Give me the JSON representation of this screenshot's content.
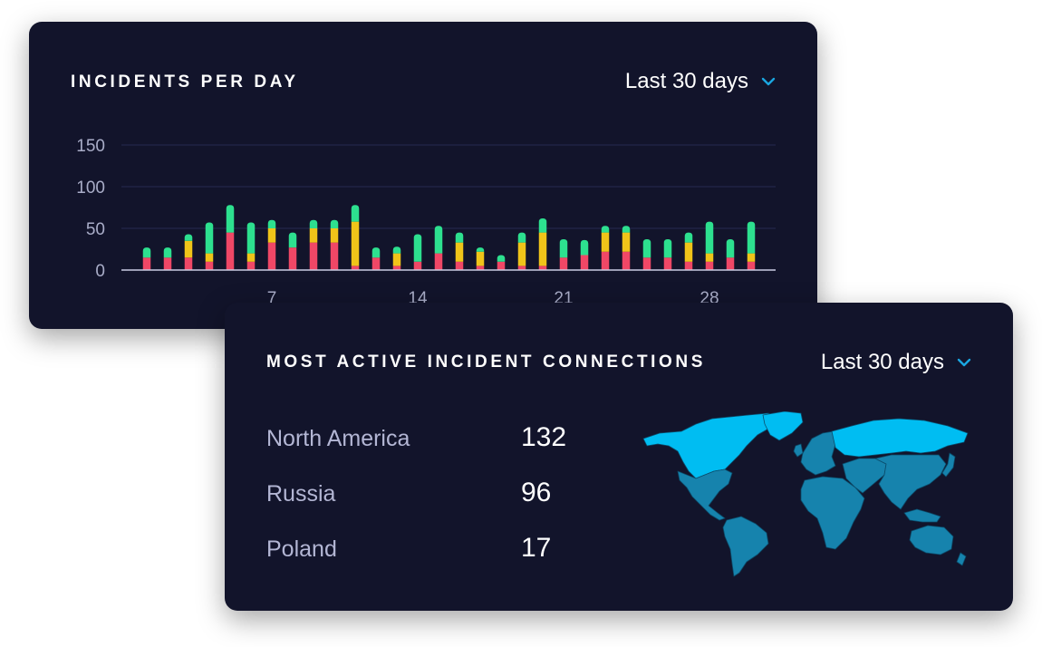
{
  "incidents_card": {
    "title": "INCIDENTS PER DAY",
    "range_label": "Last 30 days"
  },
  "connections_card": {
    "title": "MOST ACTIVE INCIDENT CONNECTIONS",
    "range_label": "Last 30 days",
    "regions": [
      {
        "name": "North America",
        "count": "132"
      },
      {
        "name": "Russia",
        "count": "96"
      },
      {
        "name": "Poland",
        "count": "17"
      }
    ],
    "map_colors": {
      "highlight": "#00bdf2",
      "base": "#1683ad",
      "border": "#0b4c6b"
    },
    "map_highlighted_regions": [
      "North America",
      "Russia"
    ]
  },
  "colors": {
    "card_bg": "#12142b",
    "accent": "#1aa6e0",
    "green": "#2de08f",
    "yellow": "#f0c419",
    "red": "#f04766",
    "axis": "#a9adc8",
    "grid": "#23264a"
  },
  "chart_data": {
    "type": "bar",
    "stacked": true,
    "ylim": [
      0,
      150
    ],
    "y_ticks": [
      "0",
      "50",
      "100",
      "150"
    ],
    "x_ticks": [
      "7",
      "14",
      "21",
      "28"
    ],
    "x": [
      1,
      2,
      3,
      4,
      5,
      6,
      7,
      8,
      9,
      10,
      11,
      12,
      13,
      14,
      15,
      16,
      17,
      18,
      19,
      20,
      21,
      22,
      23,
      24,
      25,
      26,
      27,
      28,
      29,
      30
    ],
    "series": [
      {
        "color": "#f04766",
        "values": [
          15,
          15,
          15,
          10,
          45,
          10,
          33,
          27,
          33,
          33,
          5,
          15,
          5,
          10,
          20,
          10,
          5,
          10,
          5,
          5,
          15,
          18,
          22,
          22,
          15,
          15,
          10,
          10,
          15,
          10
        ]
      },
      {
        "color": "#f0c419",
        "values": [
          0,
          0,
          20,
          10,
          0,
          10,
          17,
          0,
          17,
          17,
          53,
          0,
          15,
          0,
          0,
          23,
          17,
          0,
          28,
          40,
          0,
          0,
          23,
          23,
          0,
          0,
          23,
          10,
          0,
          10
        ]
      },
      {
        "color": "#2de08f",
        "values": [
          12,
          12,
          8,
          37,
          33,
          37,
          10,
          18,
          10,
          10,
          20,
          12,
          8,
          33,
          33,
          12,
          5,
          8,
          12,
          17,
          22,
          18,
          8,
          8,
          22,
          22,
          12,
          38,
          22,
          38
        ]
      }
    ]
  }
}
